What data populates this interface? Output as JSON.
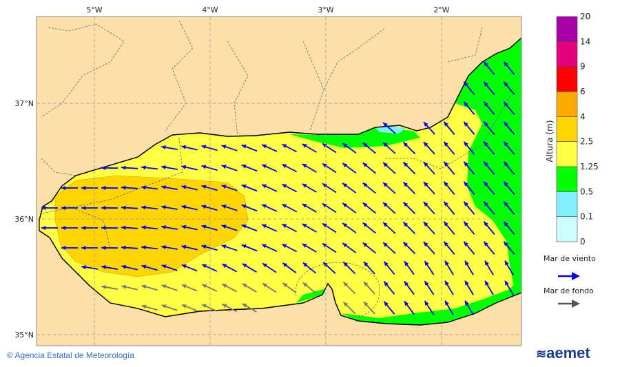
{
  "map": {
    "longitude_ticks": [
      "5°W",
      "4°W",
      "3°W",
      "2°W"
    ],
    "latitude_ticks": [
      "37°N",
      "36°N",
      "35°N"
    ],
    "colors": {
      "land": "#FDDFAA",
      "sea_yellow": "#FFFF44",
      "sea_gold": "#FFD500",
      "sea_green": "#00FF00",
      "sea_cyan": "#80F0FF",
      "wind_arrow": "#0000EE",
      "swell_arrow": "#555555"
    }
  },
  "colorbar": {
    "title": "Altura (m)",
    "levels": [
      "0",
      "0.1",
      "0.5",
      "1.25",
      "2.5",
      "4",
      "6",
      "9",
      "14",
      "20"
    ],
    "colors": [
      "#CCFFFF",
      "#80F0FF",
      "#00FF00",
      "#FFFF44",
      "#FFD500",
      "#FFAA00",
      "#FF0000",
      "#E6007E",
      "#AA00AA"
    ]
  },
  "legend": {
    "wind_sea": "Mar de viento",
    "swell": "Mar de fondo"
  },
  "footer": {
    "copyright": "© Agencia Estatal de Meteorología",
    "logo": "aemet"
  }
}
